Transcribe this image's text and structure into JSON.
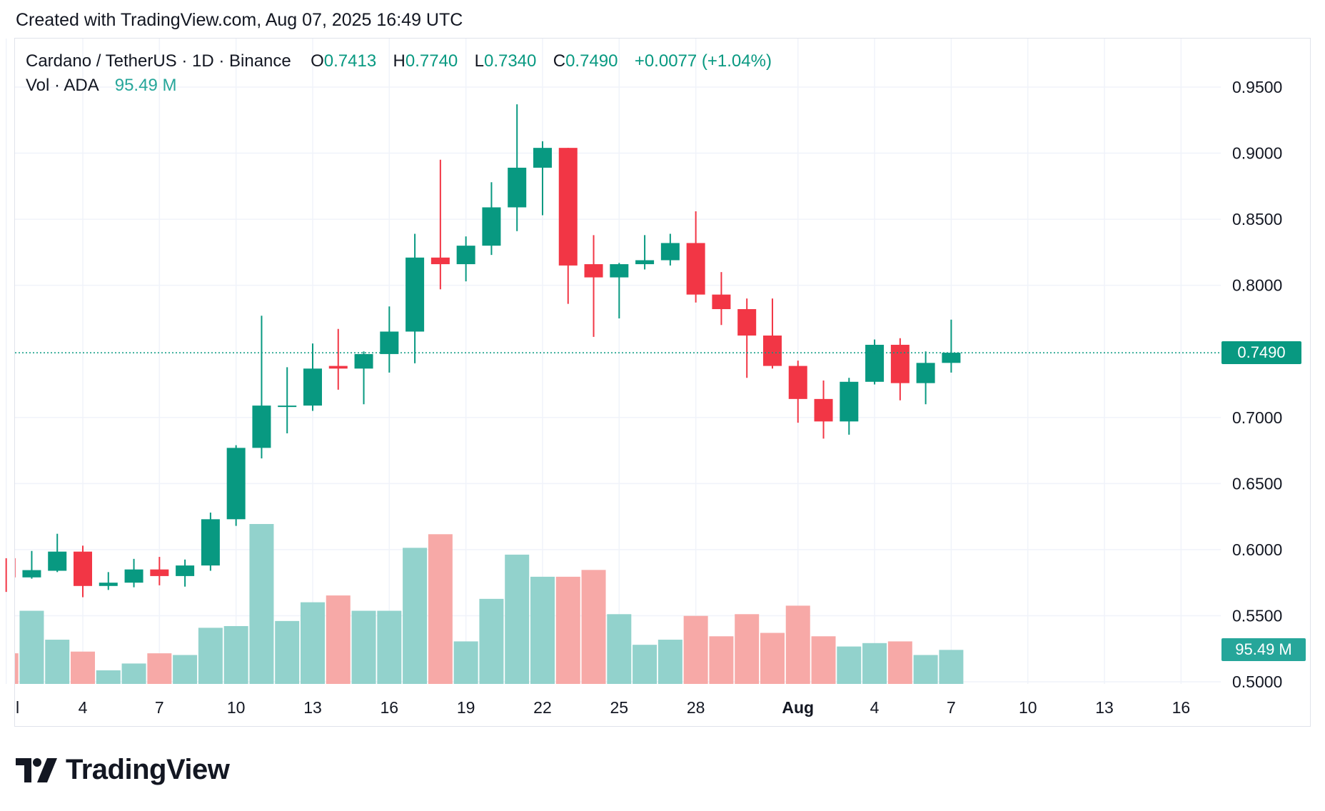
{
  "header": {
    "created_text": "Created with TradingView.com, Aug 07, 2025 16:49 UTC"
  },
  "legend": {
    "symbol": "Cardano / TetherUS · 1D · Binance",
    "o_label": "O",
    "o_value": "0.7413",
    "h_label": "H",
    "h_value": "0.7740",
    "l_label": "L",
    "l_value": "0.7340",
    "c_label": "C",
    "c_value": "0.7490",
    "change": "+0.0077 (+1.04%)"
  },
  "volume_legend": {
    "label": "Vol · ADA",
    "value": "95.49 M"
  },
  "price_tag": "0.7490",
  "volume_tag": "95.49 M",
  "logo": {
    "text": "TradingView"
  },
  "colors": {
    "up": "#089981",
    "down": "#f23645",
    "vol_up": "#92d2cc",
    "vol_down": "#f7a9a7",
    "grid": "#f0f3fa"
  },
  "chart_data": {
    "type": "candlestick",
    "symbol": "ADAUSDT",
    "interval": "1D",
    "ylim": [
      0.5,
      0.97
    ],
    "y_ticks": [
      "0.9500",
      "0.9000",
      "0.8500",
      "0.8000",
      "0.7000",
      "0.6500",
      "0.6000",
      "0.5500",
      "0.5000"
    ],
    "x_ticks": [
      {
        "day": 1,
        "label": "l"
      },
      {
        "day": 4,
        "label": "4"
      },
      {
        "day": 7,
        "label": "7"
      },
      {
        "day": 10,
        "label": "10"
      },
      {
        "day": 13,
        "label": "13"
      },
      {
        "day": 16,
        "label": "16"
      },
      {
        "day": 19,
        "label": "19"
      },
      {
        "day": 22,
        "label": "22"
      },
      {
        "day": 25,
        "label": "25"
      },
      {
        "day": 28,
        "label": "28"
      },
      {
        "day": 32,
        "label": "Aug"
      },
      {
        "day": 35,
        "label": "4"
      },
      {
        "day": 38,
        "label": "7"
      },
      {
        "day": 41,
        "label": "10"
      },
      {
        "day": 44,
        "label": "13"
      },
      {
        "day": 47,
        "label": "16"
      }
    ],
    "last_price": 0.749,
    "candles": [
      {
        "day": 1,
        "o": 0.5935,
        "h": 0.5935,
        "l": 0.568,
        "c": 0.579,
        "v": 18
      },
      {
        "day": 2,
        "o": 0.579,
        "h": 0.599,
        "l": 0.578,
        "c": 0.5845,
        "v": 43
      },
      {
        "day": 3,
        "o": 0.584,
        "h": 0.612,
        "l": 0.583,
        "c": 0.5985,
        "v": 26
      },
      {
        "day": 4,
        "o": 0.5985,
        "h": 0.603,
        "l": 0.564,
        "c": 0.5725,
        "v": 19
      },
      {
        "day": 5,
        "o": 0.5725,
        "h": 0.583,
        "l": 0.5695,
        "c": 0.575,
        "v": 8
      },
      {
        "day": 6,
        "o": 0.575,
        "h": 0.593,
        "l": 0.5715,
        "c": 0.585,
        "v": 12
      },
      {
        "day": 7,
        "o": 0.585,
        "h": 0.5945,
        "l": 0.573,
        "c": 0.58,
        "v": 18
      },
      {
        "day": 8,
        "o": 0.58,
        "h": 0.5925,
        "l": 0.572,
        "c": 0.588,
        "v": 17
      },
      {
        "day": 9,
        "o": 0.588,
        "h": 0.628,
        "l": 0.584,
        "c": 0.623,
        "v": 33
      },
      {
        "day": 10,
        "o": 0.623,
        "h": 0.679,
        "l": 0.618,
        "c": 0.677,
        "v": 34
      },
      {
        "day": 11,
        "o": 0.677,
        "h": 0.777,
        "l": 0.669,
        "c": 0.709,
        "v": 94
      },
      {
        "day": 12,
        "o": 0.709,
        "h": 0.738,
        "l": 0.688,
        "c": 0.709,
        "v": 37
      },
      {
        "day": 13,
        "o": 0.709,
        "h": 0.756,
        "l": 0.705,
        "c": 0.737,
        "v": 48
      },
      {
        "day": 14,
        "o": 0.739,
        "h": 0.767,
        "l": 0.721,
        "c": 0.737,
        "v": 52
      },
      {
        "day": 15,
        "o": 0.737,
        "h": 0.75,
        "l": 0.71,
        "c": 0.748,
        "v": 43
      },
      {
        "day": 16,
        "o": 0.748,
        "h": 0.784,
        "l": 0.734,
        "c": 0.765,
        "v": 43
      },
      {
        "day": 17,
        "o": 0.765,
        "h": 0.839,
        "l": 0.741,
        "c": 0.821,
        "v": 80
      },
      {
        "day": 18,
        "o": 0.821,
        "h": 0.895,
        "l": 0.797,
        "c": 0.816,
        "v": 88
      },
      {
        "day": 19,
        "o": 0.816,
        "h": 0.837,
        "l": 0.803,
        "c": 0.83,
        "v": 25
      },
      {
        "day": 20,
        "o": 0.83,
        "h": 0.878,
        "l": 0.823,
        "c": 0.859,
        "v": 50
      },
      {
        "day": 21,
        "o": 0.859,
        "h": 0.937,
        "l": 0.841,
        "c": 0.889,
        "v": 76
      },
      {
        "day": 22,
        "o": 0.889,
        "h": 0.909,
        "l": 0.853,
        "c": 0.904,
        "v": 63
      },
      {
        "day": 23,
        "o": 0.904,
        "h": 0.904,
        "l": 0.786,
        "c": 0.815,
        "v": 63
      },
      {
        "day": 24,
        "o": 0.816,
        "h": 0.838,
        "l": 0.761,
        "c": 0.806,
        "v": 67
      },
      {
        "day": 25,
        "o": 0.806,
        "h": 0.817,
        "l": 0.775,
        "c": 0.816,
        "v": 41
      },
      {
        "day": 26,
        "o": 0.816,
        "h": 0.838,
        "l": 0.812,
        "c": 0.819,
        "v": 23
      },
      {
        "day": 27,
        "o": 0.819,
        "h": 0.839,
        "l": 0.815,
        "c": 0.832,
        "v": 26
      },
      {
        "day": 28,
        "o": 0.832,
        "h": 0.856,
        "l": 0.787,
        "c": 0.793,
        "v": 40
      },
      {
        "day": 29,
        "o": 0.793,
        "h": 0.81,
        "l": 0.77,
        "c": 0.782,
        "v": 28
      },
      {
        "day": 30,
        "o": 0.782,
        "h": 0.79,
        "l": 0.73,
        "c": 0.762,
        "v": 41
      },
      {
        "day": 31,
        "o": 0.762,
        "h": 0.79,
        "l": 0.737,
        "c": 0.739,
        "v": 30
      },
      {
        "day": 32,
        "o": 0.739,
        "h": 0.743,
        "l": 0.696,
        "c": 0.714,
        "v": 46
      },
      {
        "day": 33,
        "o": 0.714,
        "h": 0.728,
        "l": 0.684,
        "c": 0.697,
        "v": 28
      },
      {
        "day": 34,
        "o": 0.697,
        "h": 0.73,
        "l": 0.687,
        "c": 0.727,
        "v": 22
      },
      {
        "day": 35,
        "o": 0.727,
        "h": 0.759,
        "l": 0.725,
        "c": 0.755,
        "v": 24
      },
      {
        "day": 36,
        "o": 0.755,
        "h": 0.76,
        "l": 0.713,
        "c": 0.726,
        "v": 25
      },
      {
        "day": 37,
        "o": 0.726,
        "h": 0.75,
        "l": 0.71,
        "c": 0.7413,
        "v": 17
      },
      {
        "day": 38,
        "o": 0.7413,
        "h": 0.774,
        "l": 0.734,
        "c": 0.749,
        "v": 20
      }
    ]
  }
}
